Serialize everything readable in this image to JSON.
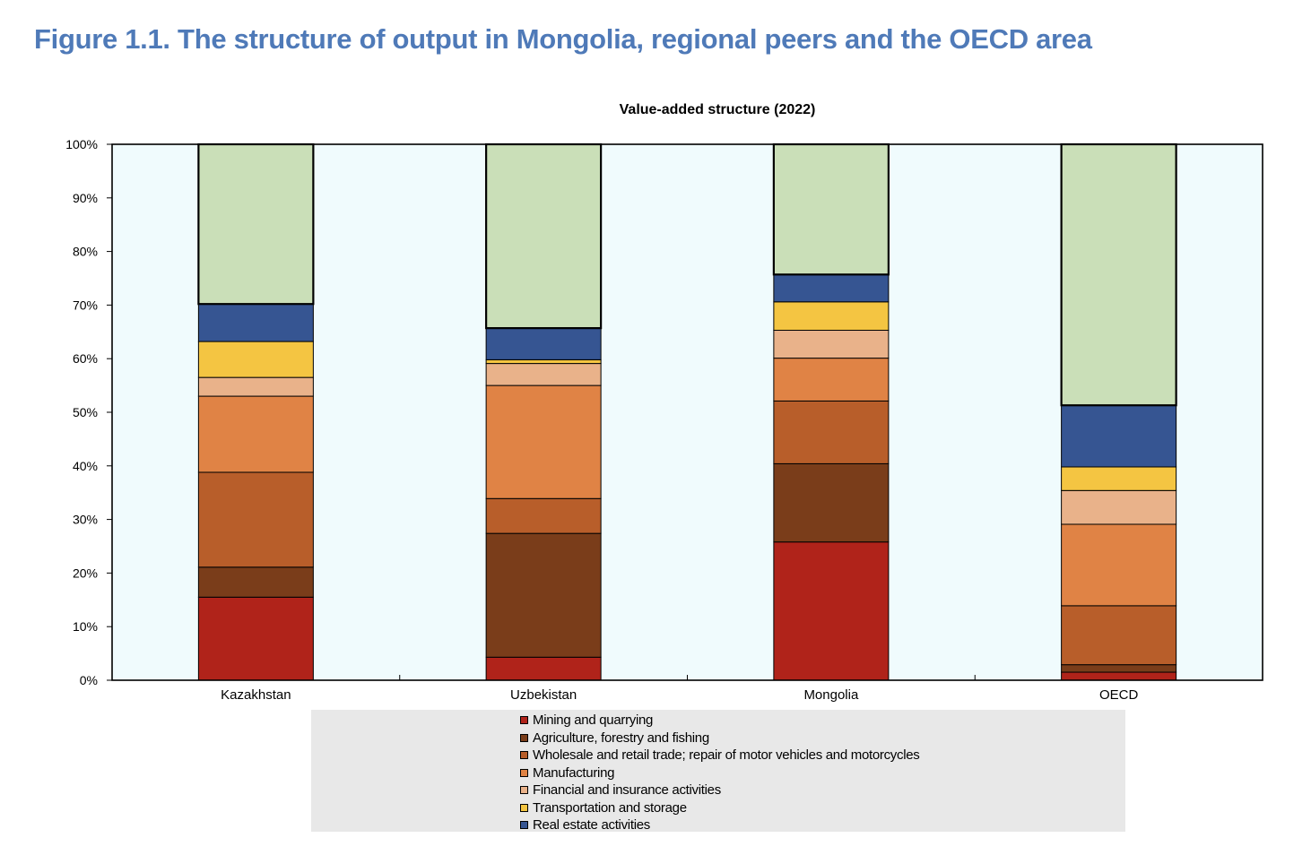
{
  "figure_title": "Figure 1.1. The structure of output in Mongolia, regional peers and the OECD area",
  "chart_data": {
    "type": "bar",
    "stacked": true,
    "title": "Value-added structure (2022)",
    "xlabel": "",
    "ylabel": "",
    "ylim": [
      0,
      100
    ],
    "yticks": [
      "0%",
      "10%",
      "20%",
      "30%",
      "40%",
      "50%",
      "60%",
      "70%",
      "80%",
      "90%",
      "100%"
    ],
    "categories": [
      "Kazakhstan",
      "Uzbekistan",
      "Mongolia",
      "OECD"
    ],
    "plot_background": "#f0fbfd",
    "series": [
      {
        "name": "Mining and quarrying",
        "color": "#b0231a",
        "values": [
          15.5,
          4.3,
          25.8,
          1.5
        ]
      },
      {
        "name": "Agriculture, forestry and fishing",
        "color": "#7a3d1a",
        "values": [
          5.6,
          23.1,
          14.6,
          1.4
        ]
      },
      {
        "name": "Wholesale and retail trade; repair of motor vehicles and motorcycles",
        "color": "#b85e2a",
        "values": [
          17.7,
          6.5,
          11.7,
          11.0
        ]
      },
      {
        "name": "Manufacturing",
        "color": "#e08345",
        "values": [
          14.2,
          21.1,
          8.0,
          15.2
        ]
      },
      {
        "name": "Financial and insurance activities",
        "color": "#e9b28a",
        "values": [
          3.5,
          4.1,
          5.2,
          6.3
        ]
      },
      {
        "name": "Transportation and storage",
        "color": "#f4c542",
        "values": [
          6.7,
          0.7,
          5.3,
          4.4
        ]
      },
      {
        "name": "Real estate activities",
        "color": "#365592",
        "values": [
          7.0,
          5.9,
          5.1,
          11.5
        ]
      },
      {
        "name": "",
        "color": "#cadfb8",
        "values": [
          29.8,
          34.3,
          24.3,
          48.7
        ]
      }
    ],
    "legend_position": "bottom",
    "legend_series_count": 7,
    "grid": false
  }
}
